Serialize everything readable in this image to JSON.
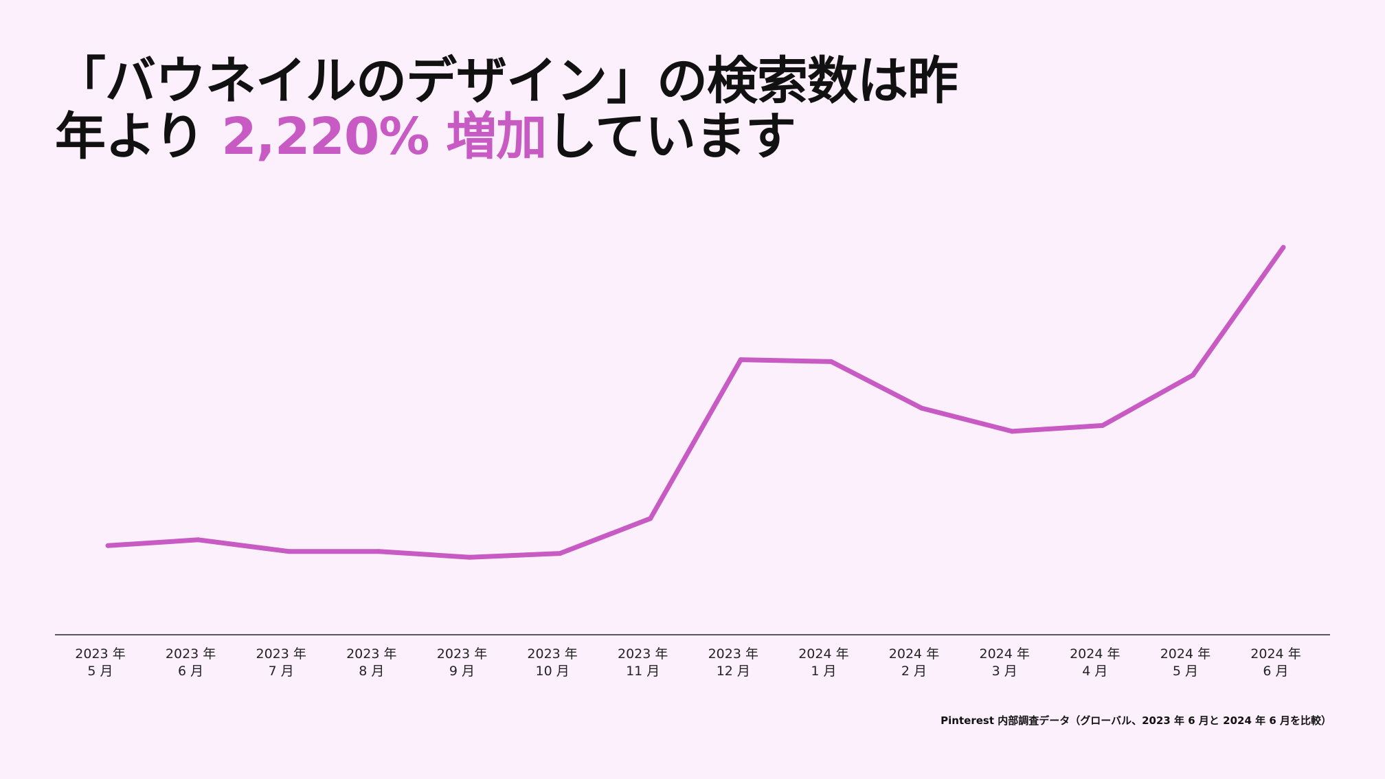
{
  "title": {
    "line1": "「バウネイルのデザイン」の検索数は昨",
    "line2_prefix": "年より ",
    "line2_highlight": "2,220% 増加",
    "line2_suffix": "しています"
  },
  "source_note": "Pinterest 内部調査データ（グローバル、2023 年 6 月と 2024 年 6 月を比較）",
  "colors": {
    "background": "#fdf0fd",
    "accent": "#c75bc3",
    "axis": "#222222",
    "text": "#111111"
  },
  "chart_data": {
    "type": "line",
    "title": "",
    "xlabel": "",
    "ylabel": "",
    "grid": false,
    "legend": false,
    "ylim": [
      0,
      100
    ],
    "categories": [
      [
        "2023 年",
        "5 月"
      ],
      [
        "2023 年",
        "6 月"
      ],
      [
        "2023 年",
        "7 月"
      ],
      [
        "2023 年",
        "8 月"
      ],
      [
        "2023 年",
        "9 月"
      ],
      [
        "2023 年",
        "10 月"
      ],
      [
        "2023 年",
        "11 月"
      ],
      [
        "2023 年",
        "12 月"
      ],
      [
        "2024 年",
        "1 月"
      ],
      [
        "2024 年",
        "2 月"
      ],
      [
        "2024 年",
        "3 月"
      ],
      [
        "2024 年",
        "4 月"
      ],
      [
        "2024 年",
        "5 月"
      ],
      [
        "2024 年",
        "6 月"
      ]
    ],
    "values": [
      23,
      24.5,
      21.5,
      21.5,
      20,
      21,
      30,
      71,
      70.5,
      58.5,
      52.5,
      54,
      67,
      100
    ]
  }
}
